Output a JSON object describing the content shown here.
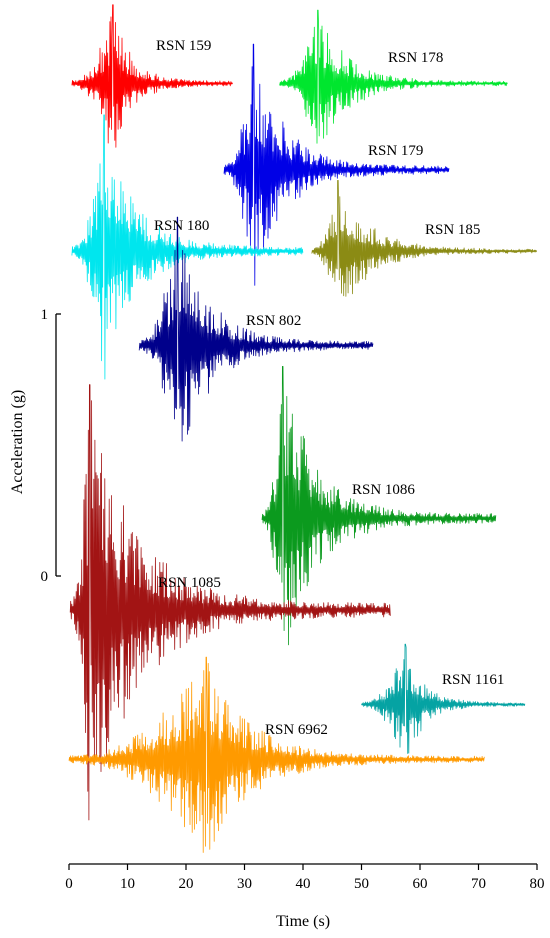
{
  "chart_data": {
    "type": "line",
    "xlabel": "Time (s)",
    "ylabel": "Acceleration (g)",
    "x_ticks": [
      "0",
      "10",
      "20",
      "30",
      "40",
      "50",
      "60",
      "70",
      "80"
    ],
    "x_tick_values": [
      0,
      10,
      20,
      30,
      40,
      50,
      60,
      70,
      80
    ],
    "xlim": [
      0,
      80
    ],
    "scale_bar": {
      "low_label": "0",
      "high_label": "1",
      "low": 0,
      "high": 1
    },
    "grid": false,
    "series": [
      {
        "name": "RSN 159",
        "color": "#ff0000",
        "t_start": 0.5,
        "t_end": 28,
        "baseline_g": 1.88,
        "peak_t": 7.5,
        "peak_g": 0.3
      },
      {
        "name": "RSN 178",
        "color": "#00e62e",
        "t_start": 36,
        "t_end": 75,
        "baseline_g": 1.88,
        "peak_t": 42.5,
        "peak_g": 0.28
      },
      {
        "name": "RSN 179",
        "color": "#0000e6",
        "t_start": 26.5,
        "t_end": 65,
        "baseline_g": 1.55,
        "peak_t": 31.5,
        "peak_g": 0.48
      },
      {
        "name": "RSN 180",
        "color": "#00e6ee",
        "t_start": 0.5,
        "t_end": 40,
        "baseline_g": 1.24,
        "peak_t": 6,
        "peak_g": 0.52
      },
      {
        "name": "RSN 185",
        "color": "#8b8b14",
        "t_start": 41.5,
        "t_end": 80,
        "baseline_g": 1.24,
        "peak_t": 46,
        "peak_g": 0.27
      },
      {
        "name": "RSN 802",
        "color": "#00008b",
        "t_start": 12,
        "t_end": 52,
        "baseline_g": 0.88,
        "peak_t": 18.5,
        "peak_g": 0.49
      },
      {
        "name": "RSN 1086",
        "color": "#0b9a1e",
        "t_start": 33,
        "t_end": 73,
        "baseline_g": 0.22,
        "peak_t": 36.5,
        "peak_g": 0.58
      },
      {
        "name": "RSN 1085",
        "color": "#a21414",
        "t_start": 0.2,
        "t_end": 55,
        "baseline_g": -0.13,
        "peak_t": 3.5,
        "peak_g": 0.86
      },
      {
        "name": "RSN 1161",
        "color": "#05a3a3",
        "t_start": 50,
        "t_end": 78,
        "baseline_g": -0.49,
        "peak_t": 57.5,
        "peak_g": 0.23
      },
      {
        "name": "RSN 6962",
        "color": "#ff9a00",
        "t_start": 0,
        "t_end": 71,
        "baseline_g": -0.7,
        "peak_t": 23.5,
        "peak_g": 0.39
      }
    ]
  }
}
